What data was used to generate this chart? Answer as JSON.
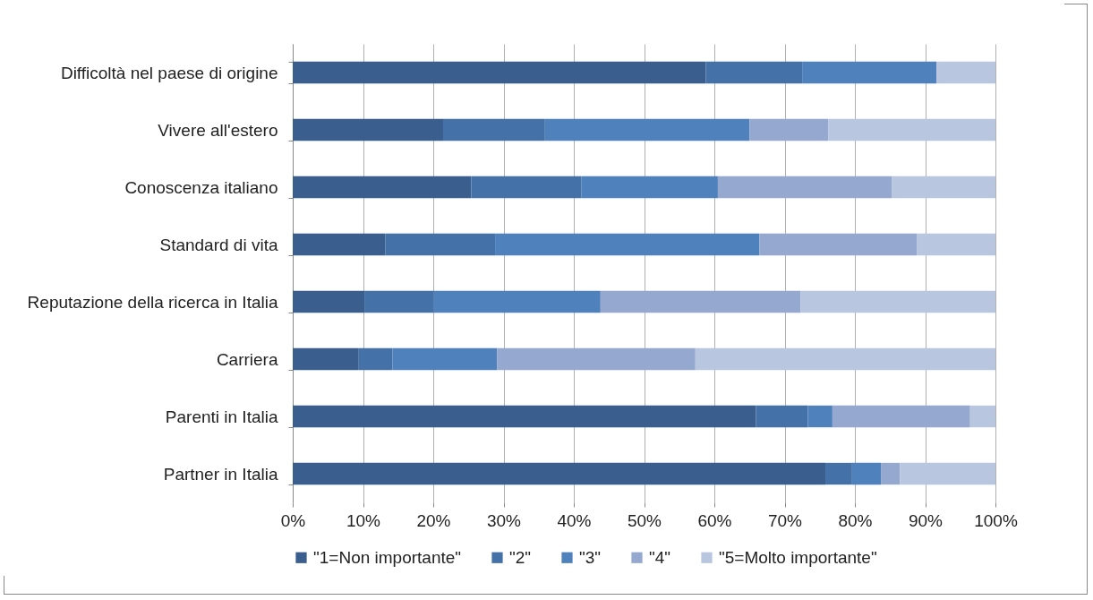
{
  "chart_data": {
    "type": "bar",
    "orientation": "horizontal",
    "stacked": true,
    "categories": [
      "Difficoltà nel paese di origine",
      "Vivere all'estero",
      "Conoscenza italiano",
      "Standard di vita",
      "Reputazione della ricerca in Italia",
      "Carriera",
      "Parenti in Italia",
      "Partner in Italia"
    ],
    "series": [
      {
        "name": "\"1=Non importante\"",
        "color": "#3a5f8e",
        "values": [
          58.8,
          21.4,
          25.4,
          13.2,
          10.2,
          9.4,
          65.9,
          75.8
        ]
      },
      {
        "name": "\"2\"",
        "color": "#4472a8",
        "values": [
          13.7,
          14.5,
          15.7,
          15.6,
          9.9,
          4.8,
          7.4,
          3.8
        ]
      },
      {
        "name": "\"3\"",
        "color": "#4f81bd",
        "values": [
          19.1,
          29.1,
          19.4,
          37.6,
          23.7,
          14.9,
          3.5,
          4.1
        ]
      },
      {
        "name": "\"4\"",
        "color": "#95a9d0",
        "values": [
          0,
          11.2,
          24.8,
          22.4,
          28.5,
          28.2,
          19.6,
          2.7
        ]
      },
      {
        "name": "\"5=Molto importante\"",
        "color": "#b9c6e0",
        "values": [
          8.4,
          23.8,
          14.7,
          11.2,
          27.7,
          42.7,
          3.6,
          13.6
        ]
      }
    ],
    "xlim": [
      0,
      100
    ],
    "xticks": [
      {
        "value": 0,
        "label": "0%"
      },
      {
        "value": 10,
        "label": "10%"
      },
      {
        "value": 20,
        "label": "20%"
      },
      {
        "value": 30,
        "label": "30%"
      },
      {
        "value": 40,
        "label": "40%"
      },
      {
        "value": 50,
        "label": "50%"
      },
      {
        "value": 60,
        "label": "60%"
      },
      {
        "value": 70,
        "label": "70%"
      },
      {
        "value": 80,
        "label": "80%"
      },
      {
        "value": 90,
        "label": "90%"
      },
      {
        "value": 100,
        "label": "100%"
      }
    ],
    "grid": "x",
    "legend": "bottom"
  }
}
